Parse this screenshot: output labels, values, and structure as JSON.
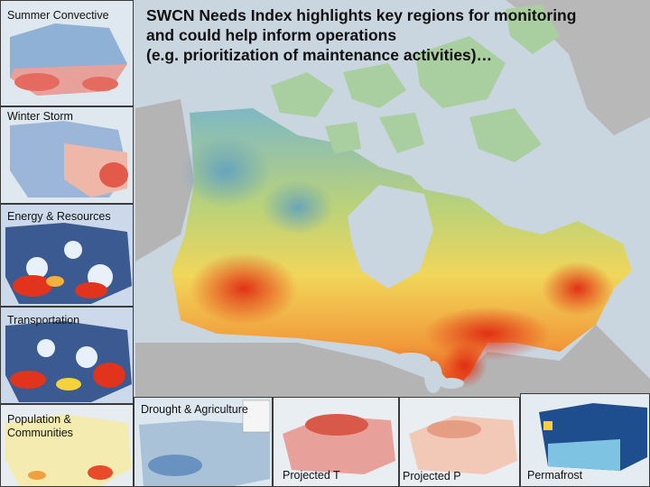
{
  "headline": {
    "line1": "SWCN Needs Index highlights key regions for monitoring",
    "line2": "and could help inform operations",
    "line3": "(e.g. prioritization of maintenance activities)…"
  },
  "side_panels": [
    {
      "label": "Summer Convective"
    },
    {
      "label": "Winter Storm"
    },
    {
      "label": "Energy & Resources"
    },
    {
      "label": "Transportation"
    },
    {
      "label": "Population &",
      "label2": "Communities"
    }
  ],
  "bottom_panels": [
    {
      "label": "Drought & Agriculture"
    },
    {
      "label": "Projected T"
    },
    {
      "label": "Projected P"
    },
    {
      "label": "Permafrost"
    }
  ],
  "colors": {
    "ocean": "#c9d6df",
    "land_outside": "#b7b7b7",
    "low_index": "#6fa8c8",
    "mid_index": "#e8e25a",
    "high_index": "#e43a1f"
  }
}
